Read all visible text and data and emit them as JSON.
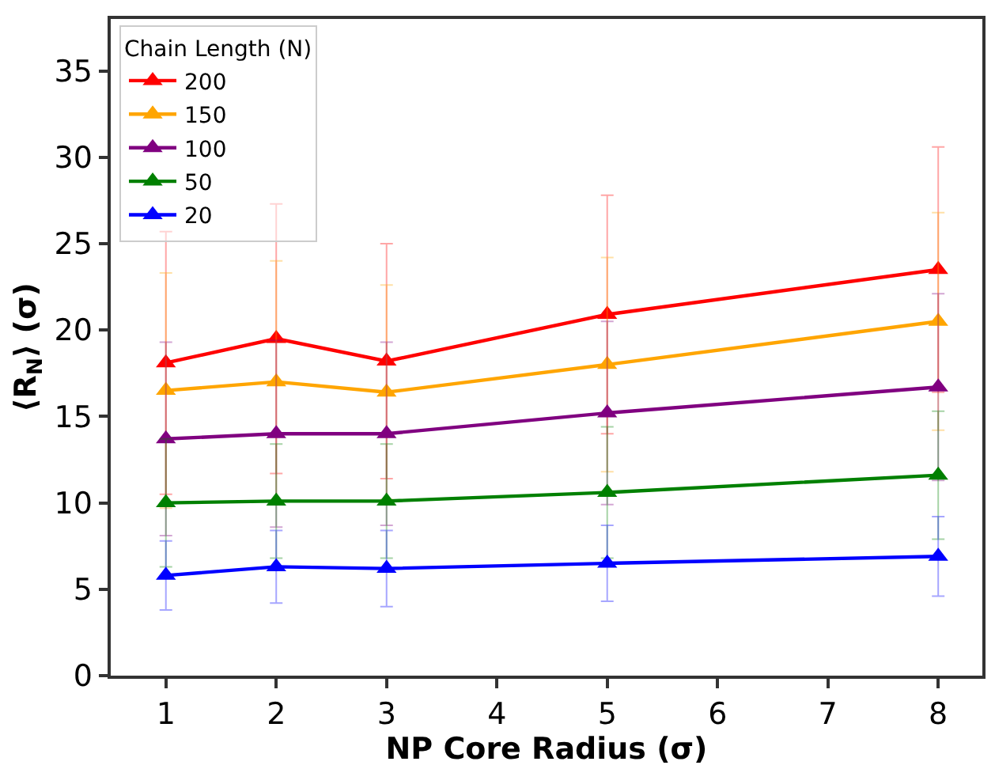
{
  "chart_data": {
    "type": "line",
    "xlabel": "NP Core Radius (σ)",
    "ylabel": "⟨R$_{N}$⟩ (σ)",
    "legend_title": "Chain Length (N)",
    "x": [
      1,
      2,
      3,
      5,
      8
    ],
    "series": [
      {
        "name": "200",
        "color": "#ff0000",
        "values": [
          18.1,
          19.5,
          18.2,
          20.9,
          23.5
        ],
        "errors": [
          7.6,
          7.8,
          6.8,
          6.9,
          7.1
        ]
      },
      {
        "name": "150",
        "color": "#ffa500",
        "values": [
          16.5,
          17.0,
          16.4,
          18.0,
          20.5
        ],
        "errors": [
          6.8,
          7.0,
          6.2,
          6.2,
          6.3
        ]
      },
      {
        "name": "100",
        "color": "#800080",
        "values": [
          13.7,
          14.0,
          14.0,
          15.2,
          16.7
        ],
        "errors": [
          5.6,
          5.4,
          5.3,
          5.3,
          5.4
        ]
      },
      {
        "name": "50",
        "color": "#008000",
        "values": [
          10.0,
          10.1,
          10.1,
          10.6,
          11.6
        ],
        "errors": [
          3.7,
          3.3,
          3.3,
          3.8,
          3.7
        ]
      },
      {
        "name": "20",
        "color": "#0000ff",
        "values": [
          5.8,
          6.3,
          6.2,
          6.5,
          6.9
        ],
        "errors": [
          2.0,
          2.1,
          2.2,
          2.2,
          2.3
        ]
      }
    ],
    "xlim": [
      0.5,
      8.4
    ],
    "ylim": [
      0,
      38
    ],
    "xticks": [
      1,
      2,
      3,
      4,
      5,
      6,
      7,
      8
    ],
    "yticks": [
      0,
      5,
      10,
      15,
      20,
      25,
      30,
      35
    ],
    "marker": "triangle",
    "line_style": "solid",
    "legend": "top left"
  }
}
